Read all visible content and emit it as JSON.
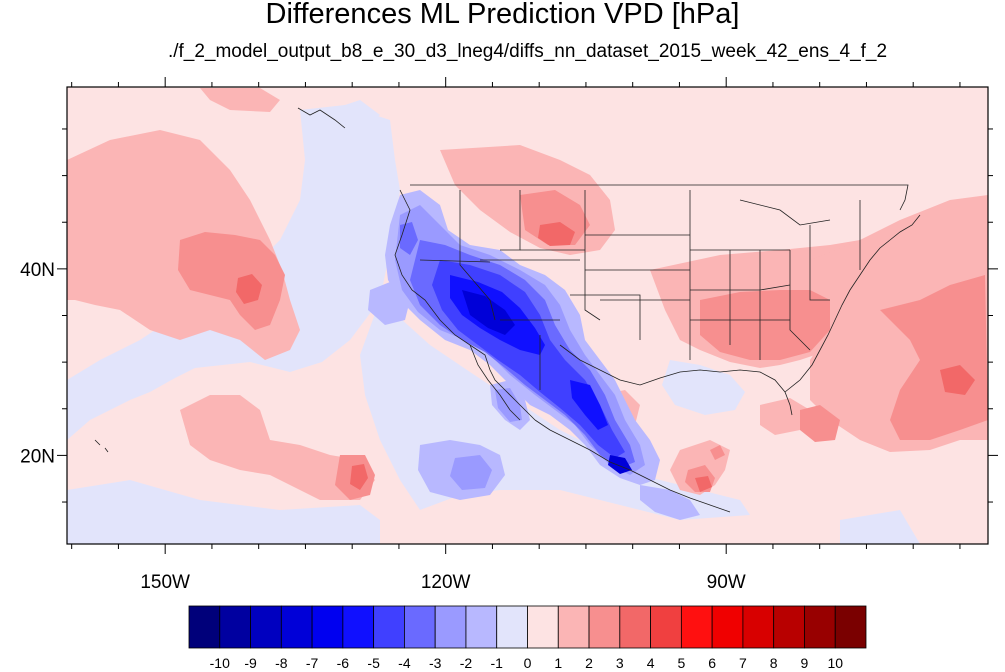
{
  "title": "Differences ML Prediction VPD [hPa]",
  "subtitle": "./f_2_model_output_b8_e_30_d3_lneg4/diffs_nn_dataset_2015_week_42_ens_4_f_2",
  "map": {
    "lon_range": [
      -160.5,
      -62
    ],
    "lat_range": [
      10.5,
      59.5
    ],
    "lon_ticks": [
      {
        "value": -150,
        "label": "150W"
      },
      {
        "value": -120,
        "label": "120W"
      },
      {
        "value": -90,
        "label": "90W"
      }
    ],
    "lat_ticks": [
      {
        "value": 40,
        "label": "40N"
      },
      {
        "value": 20,
        "label": "20N"
      }
    ],
    "background_color": "#fde3e3"
  },
  "colorbar": {
    "labels": [
      "-10",
      "-9",
      "-8",
      "-7",
      "-6",
      "-5",
      "-4",
      "-3",
      "-2",
      "-1",
      "0",
      "1",
      "2",
      "3",
      "4",
      "5",
      "6",
      "7",
      "8",
      "9",
      "10"
    ],
    "colors": [
      "#00007a",
      "#0000a0",
      "#0000c0",
      "#0000d8",
      "#0000f0",
      "#1010ff",
      "#4040ff",
      "#6a6aff",
      "#9a9aff",
      "#b8b8ff",
      "#e2e4fb",
      "#fde3e3",
      "#fbb5b5",
      "#f78f8f",
      "#f26868",
      "#f04040",
      "#ff1010",
      "#f00000",
      "#d80000",
      "#b80000",
      "#980000",
      "#7a0000"
    ]
  }
}
